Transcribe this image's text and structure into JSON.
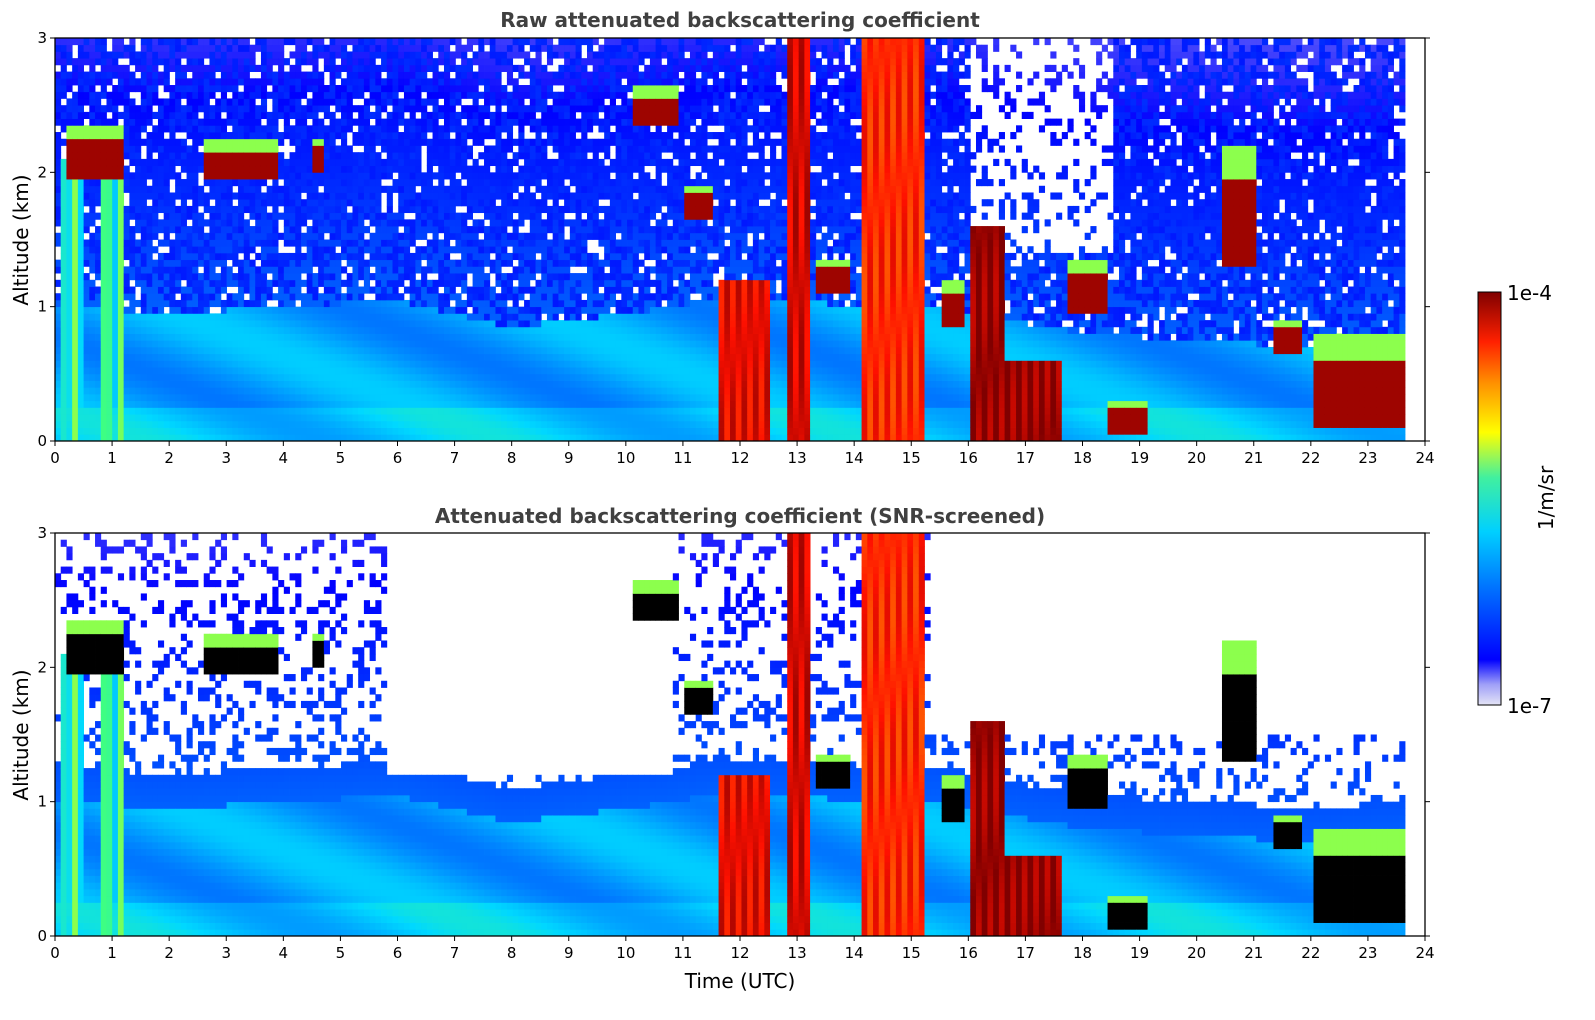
{
  "chart_data": [
    {
      "type": "heatmap",
      "title": "Raw attenuated backscattering coefficient",
      "xlabel": "",
      "ylabel": "Altitude (km)",
      "xlim": [
        0,
        24
      ],
      "ylim": [
        0,
        3
      ],
      "x_ticks": [
        "0",
        "1",
        "2",
        "3",
        "4",
        "5",
        "6",
        "7",
        "8",
        "9",
        "10",
        "11",
        "12",
        "13",
        "14",
        "15",
        "16",
        "17",
        "18",
        "19",
        "20",
        "21",
        "22",
        "23",
        "24"
      ],
      "y_ticks": [
        "0",
        "1",
        "2",
        "3"
      ],
      "data_end_time": 23.65,
      "features": {
        "boundary_layer_top_km": [
          [
            0,
            1.0
          ],
          [
            2,
            0.95
          ],
          [
            4,
            1.0
          ],
          [
            6,
            1.05
          ],
          [
            8,
            0.85
          ],
          [
            10,
            0.95
          ],
          [
            11.5,
            1.05
          ],
          [
            15.5,
            1.0
          ],
          [
            18,
            0.8
          ],
          [
            20,
            0.75
          ],
          [
            22,
            0.7
          ],
          [
            23.65,
            0.75
          ]
        ],
        "cloud_layers": [
          {
            "start": 0.25,
            "end": 1.2,
            "base_km": 2.05,
            "top_km": 2.35
          },
          {
            "start": 2.6,
            "end": 3.9,
            "base_km": 2.05,
            "top_km": 2.25
          },
          {
            "start": 4.5,
            "end": 4.7,
            "base_km": 2.1,
            "top_km": 2.25
          },
          {
            "start": 10.1,
            "end": 10.9,
            "base_km": 2.45,
            "top_km": 2.65
          },
          {
            "start": 11.0,
            "end": 11.5,
            "base_km": 1.75,
            "top_km": 1.9
          },
          {
            "start": 13.3,
            "end": 13.9,
            "base_km": 1.2,
            "top_km": 1.35
          },
          {
            "start": 15.5,
            "end": 15.9,
            "base_km": 0.95,
            "top_km": 1.2
          },
          {
            "start": 17.7,
            "end": 18.4,
            "base_km": 1.05,
            "top_km": 1.35
          },
          {
            "start": 18.4,
            "end": 19.1,
            "base_km": 0.15,
            "top_km": 0.3
          },
          {
            "start": 20.4,
            "end": 21.0,
            "base_km": 1.4,
            "top_km": 2.2
          },
          {
            "start": 21.3,
            "end": 21.8,
            "base_km": 0.75,
            "top_km": 0.9
          },
          {
            "start": 22.0,
            "end": 23.65,
            "base_km": 0.2,
            "top_km": 0.8
          }
        ],
        "precipitation_columns": [
          {
            "start": 11.6,
            "end": 12.5,
            "top_km": 1.2,
            "level": 0.9
          },
          {
            "start": 12.8,
            "end": 13.2,
            "top_km": 3.0,
            "level": 0.92
          },
          {
            "start": 14.1,
            "end": 15.2,
            "top_km": 3.0,
            "level": 0.85
          },
          {
            "start": 16.0,
            "end": 16.6,
            "top_km": 1.6,
            "level": 0.98
          },
          {
            "start": 16.6,
            "end": 17.6,
            "top_km": 0.6,
            "level": 0.98
          }
        ]
      }
    },
    {
      "type": "heatmap",
      "title": "Attenuated backscattering coefficient (SNR-screened)",
      "xlabel": "Time (UTC)",
      "ylabel": "Altitude (km)",
      "xlim": [
        0,
        24
      ],
      "ylim": [
        0,
        3
      ],
      "x_ticks": [
        "0",
        "1",
        "2",
        "3",
        "4",
        "5",
        "6",
        "7",
        "8",
        "9",
        "10",
        "11",
        "12",
        "13",
        "14",
        "15",
        "16",
        "17",
        "18",
        "19",
        "20",
        "21",
        "22",
        "23",
        "24"
      ],
      "y_ticks": [
        "0",
        "1",
        "2",
        "3"
      ],
      "data_end_time": 23.65,
      "screening": "low-SNR pixels removed (white)"
    }
  ],
  "colorbar": {
    "label": "1/m/sr",
    "max_label": "1e-4",
    "min_label": "1e-7",
    "scale": "log",
    "range": [
      1e-07,
      0.0001
    ],
    "colormap": [
      "#e4e4f6",
      "#0000ff",
      "#0080ff",
      "#00d8ff",
      "#40ff80",
      "#ffff00",
      "#ff8000",
      "#ff1000",
      "#800000"
    ]
  }
}
